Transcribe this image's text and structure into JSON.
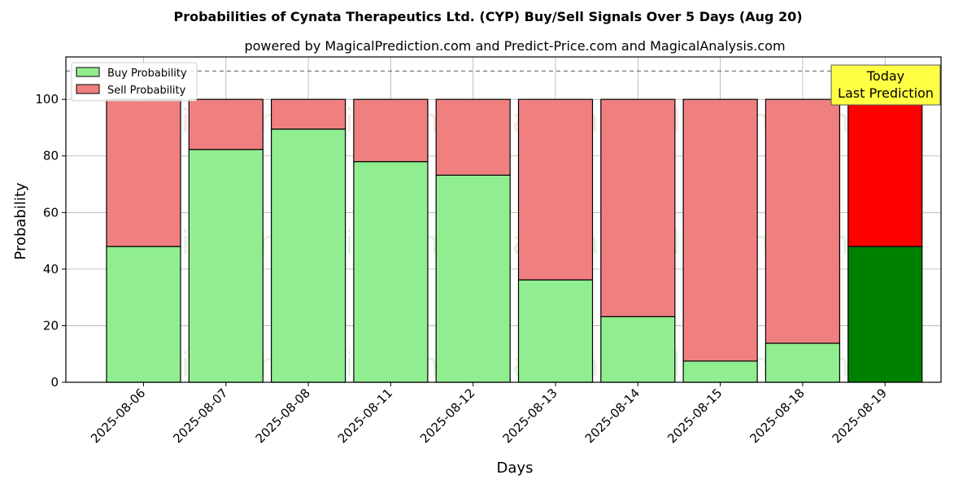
{
  "chart_data": {
    "type": "bar",
    "title": "Probabilities of Cynata Therapeutics Ltd. (CYP) Buy/Sell Signals Over 5 Days (Aug 20)",
    "subtitle": "powered by MagicalPrediction.com and Predict-Price.com and MagicalAnalysis.com",
    "xlabel": "Days",
    "ylabel": "Probability",
    "ylim": [
      0,
      115
    ],
    "yticks": [
      0,
      20,
      40,
      60,
      80,
      100
    ],
    "reference_line": 110,
    "categories": [
      "2025-08-06",
      "2025-08-07",
      "2025-08-08",
      "2025-08-11",
      "2025-08-12",
      "2025-08-13",
      "2025-08-14",
      "2025-08-15",
      "2025-08-18",
      "2025-08-19"
    ],
    "series": [
      {
        "name": "Buy Probability",
        "values": [
          48,
          82.3,
          89.5,
          78,
          73.2,
          36.2,
          23.2,
          7.5,
          13.8,
          48
        ]
      },
      {
        "name": "Sell Probability",
        "values": [
          52,
          17.7,
          10.5,
          22,
          26.8,
          63.8,
          76.8,
          92.5,
          86.2,
          52
        ]
      }
    ],
    "colors": {
      "buy": "#90ee90",
      "sell": "#f08080",
      "buy_highlight": "#008000",
      "sell_highlight": "#ff0000",
      "annotation_bg": "#ffff44"
    },
    "highlight_index": 9,
    "annotation": {
      "line1": "Today",
      "line2": "Last Prediction"
    },
    "legend_position": "top-left",
    "grid": true,
    "watermarks": [
      "MagicalAnalysis.com",
      "MagicalPrediction.com"
    ]
  }
}
